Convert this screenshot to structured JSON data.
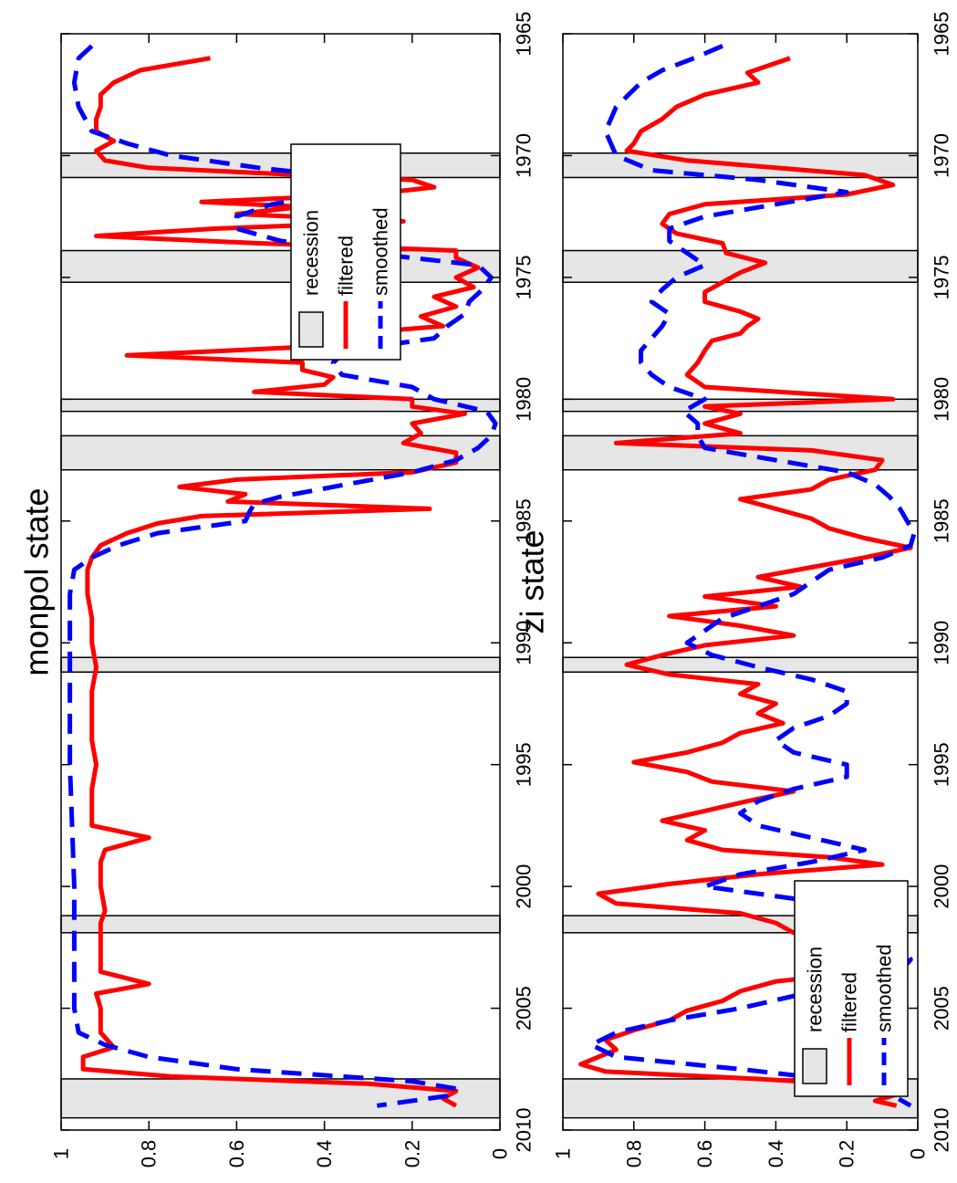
{
  "chart_data": [
    {
      "type": "line",
      "title": "monpol state",
      "xlim": [
        1965,
        2010
      ],
      "ylim": [
        0,
        1
      ],
      "x_ticks": [
        "1965",
        "1970",
        "1975",
        "1980",
        "1985",
        "1990",
        "1995",
        "2000",
        "2005",
        "2010"
      ],
      "y_ticks": [
        "0",
        "0.2",
        "0.4",
        "0.6",
        "0.8",
        "1"
      ],
      "grid": false,
      "legend": {
        "placement": "upper-right",
        "entries": [
          "recession",
          "filtered",
          "smoothed"
        ]
      },
      "recessions": [
        [
          1969.9,
          1970.9
        ],
        [
          1973.9,
          1975.2
        ],
        [
          1980.0,
          1980.5
        ],
        [
          1981.5,
          1982.9
        ],
        [
          1990.6,
          1991.2
        ],
        [
          2001.2,
          2001.9
        ],
        [
          2007.9,
          2009.5
        ]
      ],
      "series": [
        {
          "name": "filtered",
          "color": "#ff0000",
          "style": "solid",
          "x": [
            1966.0,
            1966.5,
            1967.0,
            1967.5,
            1968.0,
            1968.5,
            1969.0,
            1969.4,
            1969.8,
            1970.2,
            1970.5,
            1970.8,
            1971.0,
            1971.3,
            1971.6,
            1971.9,
            1972.1,
            1972.4,
            1972.7,
            1973.0,
            1973.3,
            1973.6,
            1973.9,
            1974.2,
            1974.6,
            1975.0,
            1975.4,
            1975.8,
            1976.2,
            1976.6,
            1977.0,
            1977.4,
            1977.8,
            1978.2,
            1978.5,
            1978.8,
            1979.1,
            1979.4,
            1979.7,
            1980.0,
            1980.3,
            1980.6,
            1981.0,
            1981.4,
            1981.8,
            1982.2,
            1982.6,
            1983.0,
            1983.3,
            1983.6,
            1983.9,
            1984.2,
            1984.5,
            1984.8,
            1985.1,
            1985.5,
            1986.0,
            1986.5,
            1987.0,
            1988.0,
            1989.0,
            1990.0,
            1991.0,
            1992.0,
            1993.0,
            1994.0,
            1995.0,
            1996.0,
            1997.0,
            1997.5,
            1998.0,
            1998.5,
            1999.0,
            2000.0,
            2001.0,
            2001.5,
            2002.0,
            2003.0,
            2003.5,
            2004.0,
            2004.4,
            2005.0,
            2006.0,
            2006.6,
            2007.0,
            2007.5,
            2007.8,
            2008.1,
            2008.4,
            2008.7,
            2009.0
          ],
          "y": [
            0.66,
            0.82,
            0.88,
            0.91,
            0.91,
            0.92,
            0.92,
            0.88,
            0.92,
            0.9,
            0.8,
            0.45,
            0.2,
            0.15,
            0.3,
            0.68,
            0.45,
            0.6,
            0.22,
            0.65,
            0.92,
            0.55,
            0.1,
            0.1,
            0.05,
            0.1,
            0.06,
            0.15,
            0.1,
            0.18,
            0.13,
            0.4,
            0.38,
            0.85,
            0.45,
            0.45,
            0.38,
            0.4,
            0.56,
            0.2,
            0.2,
            0.08,
            0.2,
            0.18,
            0.22,
            0.1,
            0.1,
            0.2,
            0.6,
            0.73,
            0.58,
            0.62,
            0.16,
            0.68,
            0.78,
            0.85,
            0.91,
            0.93,
            0.94,
            0.94,
            0.93,
            0.93,
            0.92,
            0.93,
            0.93,
            0.93,
            0.92,
            0.93,
            0.93,
            0.93,
            0.8,
            0.9,
            0.91,
            0.91,
            0.9,
            0.91,
            0.91,
            0.91,
            0.91,
            0.8,
            0.92,
            0.91,
            0.91,
            0.88,
            0.95,
            0.95,
            0.75,
            0.3,
            0.1,
            0.13,
            0.1
          ]
        },
        {
          "name": "smoothed",
          "color": "#0000ff",
          "style": "dashed",
          "x": [
            1965.5,
            1966.0,
            1967.0,
            1968.0,
            1969.0,
            1969.5,
            1970.0,
            1970.5,
            1971.0,
            1971.5,
            1972.0,
            1972.5,
            1973.0,
            1973.5,
            1974.0,
            1974.5,
            1975.0,
            1975.5,
            1976.0,
            1976.5,
            1977.0,
            1977.5,
            1978.0,
            1978.5,
            1979.0,
            1979.5,
            1980.0,
            1980.5,
            1981.0,
            1981.5,
            1982.0,
            1982.5,
            1983.0,
            1983.5,
            1984.0,
            1984.3,
            1984.6,
            1985.0,
            1985.5,
            1986.0,
            1986.5,
            1987.0,
            1988.0,
            1989.0,
            1990.0,
            1992.0,
            1995.0,
            2000.0,
            2003.0,
            2005.0,
            2006.0,
            2006.5,
            2007.0,
            2007.5,
            2008.0,
            2008.3,
            2008.6,
            2009.0
          ],
          "y": [
            0.93,
            0.96,
            0.97,
            0.96,
            0.93,
            0.85,
            0.75,
            0.55,
            0.3,
            0.35,
            0.52,
            0.6,
            0.6,
            0.5,
            0.3,
            0.05,
            0.02,
            0.04,
            0.07,
            0.08,
            0.12,
            0.15,
            0.35,
            0.38,
            0.36,
            0.2,
            0.15,
            0.03,
            0.01,
            0.02,
            0.05,
            0.1,
            0.2,
            0.35,
            0.5,
            0.56,
            0.57,
            0.58,
            0.78,
            0.87,
            0.93,
            0.97,
            0.98,
            0.98,
            0.98,
            0.98,
            0.98,
            0.97,
            0.97,
            0.97,
            0.96,
            0.9,
            0.8,
            0.6,
            0.2,
            0.1,
            0.12,
            0.28
          ]
        }
      ]
    },
    {
      "type": "line",
      "title": "zi state",
      "xlim": [
        1965,
        2010
      ],
      "ylim": [
        0,
        1
      ],
      "x_ticks": [
        "1965",
        "1970",
        "1975",
        "1980",
        "1985",
        "1990",
        "1995",
        "2000",
        "2005",
        "2010"
      ],
      "y_ticks": [
        "0",
        "0.2",
        "0.4",
        "0.6",
        "0.8",
        "1"
      ],
      "grid": false,
      "legend": {
        "placement": "lower-left",
        "entries": [
          "recession",
          "filtered",
          "smoothed"
        ]
      },
      "recessions": [
        [
          1969.9,
          1970.9
        ],
        [
          1973.9,
          1975.2
        ],
        [
          1980.0,
          1980.5
        ],
        [
          1981.5,
          1982.9
        ],
        [
          1990.6,
          1991.2
        ],
        [
          2001.2,
          2001.9
        ],
        [
          2007.9,
          2009.5
        ]
      ],
      "series": [
        {
          "name": "filtered",
          "color": "#ff0000",
          "style": "solid",
          "x": [
            1966.0,
            1966.3,
            1966.6,
            1967.0,
            1967.5,
            1968.0,
            1968.5,
            1969.0,
            1969.5,
            1969.8,
            1970.2,
            1970.5,
            1970.8,
            1971.2,
            1971.6,
            1972.0,
            1972.4,
            1972.8,
            1973.2,
            1973.6,
            1974.0,
            1974.4,
            1974.8,
            1975.2,
            1975.6,
            1976.0,
            1976.4,
            1976.7,
            1977.0,
            1977.3,
            1977.6,
            1978.0,
            1978.5,
            1979.0,
            1979.5,
            1980.0,
            1980.3,
            1980.6,
            1981.0,
            1981.4,
            1981.8,
            1982.1,
            1982.5,
            1982.9,
            1983.3,
            1983.7,
            1984.1,
            1984.5,
            1984.9,
            1985.3,
            1985.7,
            1986.1,
            1986.5,
            1986.9,
            1987.3,
            1987.7,
            1988.1,
            1988.5,
            1988.9,
            1989.3,
            1989.7,
            1990.1,
            1990.5,
            1990.9,
            1991.3,
            1991.7,
            1992.1,
            1992.5,
            1992.9,
            1993.3,
            1993.7,
            1994.1,
            1994.5,
            1994.9,
            1995.3,
            1995.7,
            1996.1,
            1996.5,
            1996.9,
            1997.3,
            1997.7,
            1998.1,
            1998.5,
            1998.8,
            1999.1,
            1999.5,
            1999.9,
            2000.3,
            2000.7,
            2001.1,
            2001.5,
            2001.9,
            2002.3,
            2002.7,
            2003.1,
            2003.5,
            2003.9,
            2004.3,
            2004.7,
            2005.1,
            2005.5,
            2005.9,
            2006.3,
            2006.7,
            2007.0,
            2007.3,
            2007.6,
            2007.9,
            2008.2,
            2008.5,
            2008.8,
            2009.0
          ],
          "y": [
            0.36,
            0.42,
            0.48,
            0.45,
            0.6,
            0.68,
            0.72,
            0.78,
            0.8,
            0.82,
            0.65,
            0.4,
            0.15,
            0.07,
            0.2,
            0.6,
            0.7,
            0.72,
            0.68,
            0.55,
            0.54,
            0.43,
            0.5,
            0.55,
            0.6,
            0.6,
            0.5,
            0.45,
            0.48,
            0.5,
            0.58,
            0.6,
            0.62,
            0.65,
            0.6,
            0.07,
            0.6,
            0.5,
            0.6,
            0.5,
            0.85,
            0.3,
            0.1,
            0.12,
            0.25,
            0.3,
            0.5,
            0.4,
            0.3,
            0.25,
            0.15,
            0.02,
            0.15,
            0.3,
            0.45,
            0.33,
            0.6,
            0.4,
            0.7,
            0.5,
            0.35,
            0.6,
            0.72,
            0.82,
            0.7,
            0.45,
            0.5,
            0.4,
            0.45,
            0.38,
            0.5,
            0.55,
            0.65,
            0.8,
            0.65,
            0.58,
            0.35,
            0.48,
            0.6,
            0.72,
            0.6,
            0.65,
            0.55,
            0.25,
            0.1,
            0.45,
            0.7,
            0.9,
            0.85,
            0.5,
            0.4,
            0.35,
            0.05,
            0.07,
            0.1,
            0.15,
            0.4,
            0.5,
            0.55,
            0.65,
            0.7,
            0.8,
            0.88,
            0.85,
            0.9,
            0.95,
            0.88,
            0.45,
            0.1,
            0.05,
            0.12,
            0.06
          ]
        },
        {
          "name": "smoothed",
          "color": "#0000ff",
          "style": "dashed",
          "x": [
            1965.5,
            1966.0,
            1966.5,
            1967.0,
            1968.0,
            1969.0,
            1970.0,
            1970.6,
            1971.0,
            1971.5,
            1972.0,
            1972.5,
            1973.0,
            1973.5,
            1974.0,
            1974.5,
            1975.0,
            1975.5,
            1976.0,
            1976.5,
            1977.0,
            1977.5,
            1978.0,
            1978.5,
            1979.0,
            1979.5,
            1980.0,
            1980.5,
            1981.0,
            1981.5,
            1982.0,
            1982.5,
            1983.0,
            1983.5,
            1984.0,
            1984.5,
            1985.0,
            1985.5,
            1986.0,
            1986.5,
            1987.0,
            1987.5,
            1988.0,
            1988.5,
            1989.0,
            1989.5,
            1990.0,
            1990.5,
            1991.0,
            1991.5,
            1992.0,
            1992.5,
            1993.0,
            1993.5,
            1994.0,
            1994.5,
            1995.0,
            1995.5,
            1996.0,
            1996.5,
            1997.0,
            1997.5,
            1998.0,
            1998.5,
            1999.0,
            1999.5,
            2000.0,
            2000.5,
            2001.0,
            2001.5,
            2002.0,
            2002.5,
            2003.0,
            2003.5,
            2004.0,
            2004.5,
            2005.0,
            2005.5,
            2006.0,
            2006.5,
            2007.0,
            2007.5,
            2008.0,
            2008.5,
            2009.0
          ],
          "y": [
            0.55,
            0.63,
            0.72,
            0.78,
            0.85,
            0.88,
            0.85,
            0.75,
            0.45,
            0.2,
            0.4,
            0.6,
            0.7,
            0.7,
            0.65,
            0.6,
            0.68,
            0.72,
            0.75,
            0.7,
            0.72,
            0.75,
            0.78,
            0.78,
            0.75,
            0.7,
            0.6,
            0.66,
            0.62,
            0.62,
            0.6,
            0.4,
            0.2,
            0.12,
            0.08,
            0.05,
            0.03,
            0.01,
            0.02,
            0.1,
            0.25,
            0.3,
            0.35,
            0.45,
            0.55,
            0.6,
            0.65,
            0.58,
            0.45,
            0.3,
            0.2,
            0.2,
            0.25,
            0.35,
            0.4,
            0.35,
            0.2,
            0.2,
            0.35,
            0.45,
            0.5,
            0.45,
            0.3,
            0.15,
            0.3,
            0.5,
            0.6,
            0.35,
            0.2,
            0.18,
            0.1,
            0.04,
            0.02,
            0.05,
            0.15,
            0.35,
            0.5,
            0.7,
            0.85,
            0.92,
            0.85,
            0.5,
            0.2,
            0.08,
            0.02
          ]
        }
      ]
    }
  ]
}
